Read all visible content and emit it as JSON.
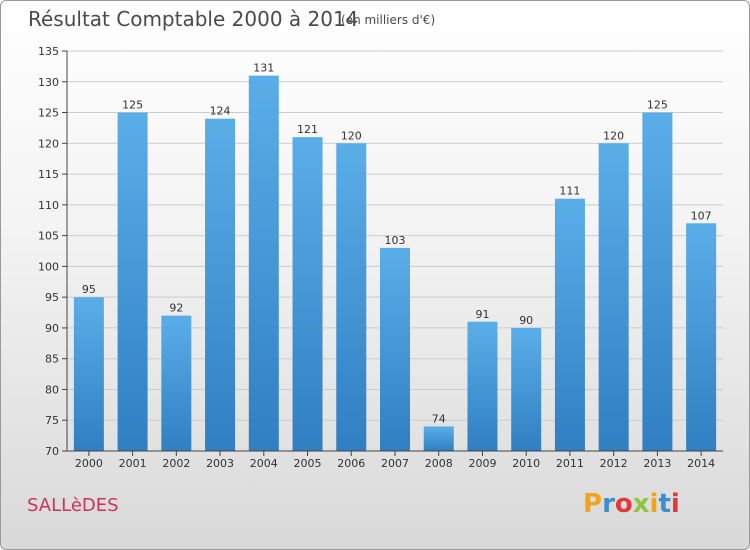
{
  "header": {
    "title": "Résultat Comptable 2000 à 2014",
    "subtitle": "(en milliers d'€)"
  },
  "commune": "SALLèDES",
  "logo": {
    "text": "Proxiti",
    "letter_colors": [
      "#f2a31b",
      "#3b8ed0",
      "#e03a3a",
      "#8cc63f",
      "#f2a31b",
      "#3b8ed0",
      "#e03a3a"
    ]
  },
  "colors": {
    "bar_light": "#5aaee8",
    "bar_dark": "#2f7fc2",
    "axis": "#444444",
    "grid": "#cccccc"
  },
  "chart_data": {
    "type": "bar",
    "title": "Résultat Comptable 2000 à 2014",
    "subtitle": "(en milliers d'€)",
    "categories": [
      "2000",
      "2001",
      "2002",
      "2003",
      "2004",
      "2005",
      "2006",
      "2007",
      "2008",
      "2009",
      "2010",
      "2011",
      "2012",
      "2013",
      "2014"
    ],
    "values": [
      95,
      125,
      92,
      124,
      131,
      121,
      120,
      103,
      74,
      91,
      90,
      111,
      120,
      125,
      107
    ],
    "ylim": [
      70,
      135
    ],
    "yticks": [
      70,
      75,
      80,
      85,
      90,
      95,
      100,
      105,
      110,
      115,
      120,
      125,
      130,
      135
    ],
    "grid": true,
    "xlabel": "",
    "ylabel": ""
  }
}
